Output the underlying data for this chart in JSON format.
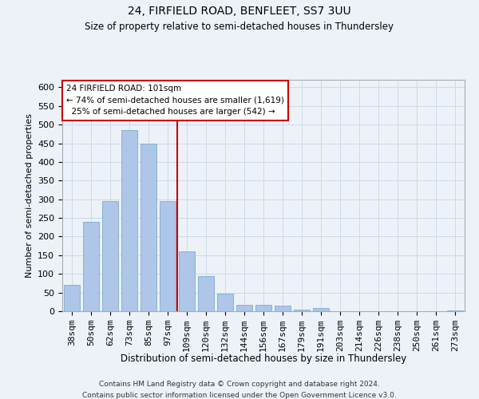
{
  "title1": "24, FIRFIELD ROAD, BENFLEET, SS7 3UU",
  "title2": "Size of property relative to semi-detached houses in Thundersley",
  "xlabel": "Distribution of semi-detached houses by size in Thundersley",
  "ylabel": "Number of semi-detached properties",
  "footer1": "Contains HM Land Registry data © Crown copyright and database right 2024.",
  "footer2": "Contains public sector information licensed under the Open Government Licence v3.0.",
  "categories": [
    "38sqm",
    "50sqm",
    "62sqm",
    "73sqm",
    "85sqm",
    "97sqm",
    "109sqm",
    "120sqm",
    "132sqm",
    "144sqm",
    "156sqm",
    "167sqm",
    "179sqm",
    "191sqm",
    "203sqm",
    "214sqm",
    "226sqm",
    "238sqm",
    "250sqm",
    "261sqm",
    "273sqm"
  ],
  "values": [
    70,
    240,
    295,
    485,
    450,
    295,
    160,
    95,
    48,
    18,
    18,
    15,
    5,
    8,
    1,
    1,
    1,
    1,
    0,
    0,
    3
  ],
  "bar_color": "#aec6e8",
  "bar_edge_color": "#7aadd4",
  "property_label": "24 FIRFIELD ROAD: 101sqm",
  "pct_smaller": 74,
  "count_smaller": 1619,
  "pct_larger": 25,
  "count_larger": 542,
  "vline_x_index": 5.5,
  "ylim": [
    0,
    620
  ],
  "annotation_box_color": "#ffffff",
  "annotation_box_edge": "#cc0000",
  "vline_color": "#cc0000",
  "grid_color": "#d0d8e8",
  "bg_color": "#edf2f9"
}
